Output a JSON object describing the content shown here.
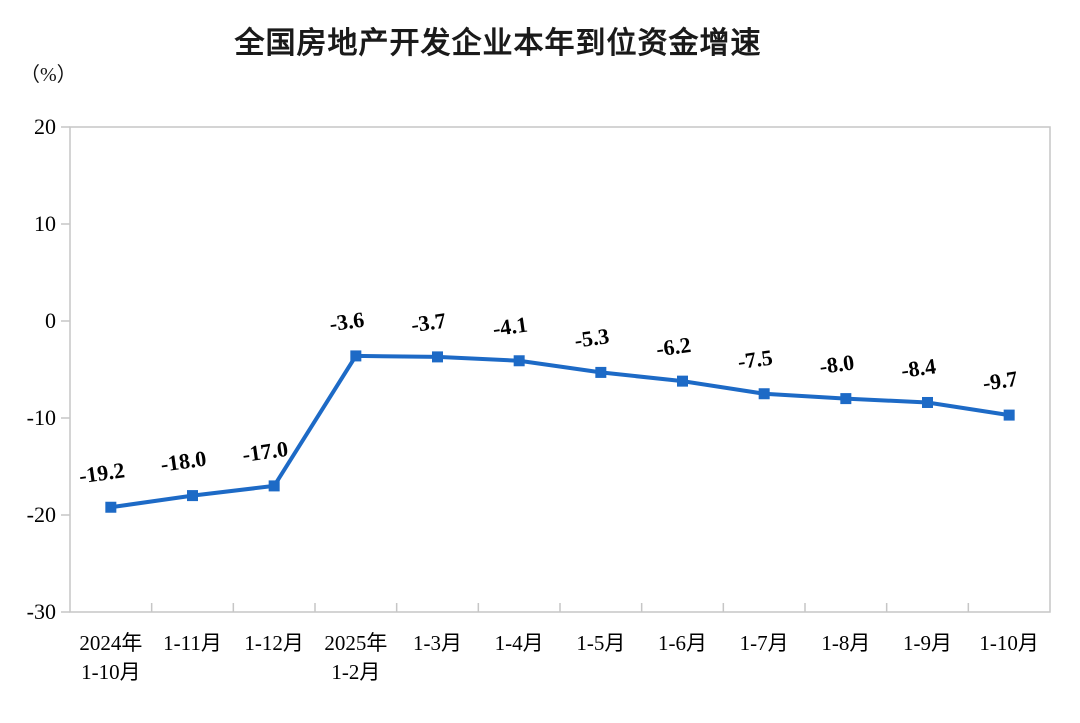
{
  "page": {
    "background_color": "#ffffff"
  },
  "chart_data": {
    "type": "line",
    "title": "全国房地产开发企业本年到位资金增速",
    "unit_label": "（%）",
    "xlabel": "",
    "ylabel": "（%）",
    "categories": [
      [
        "2024年",
        "1-10月"
      ],
      [
        "1-11月"
      ],
      [
        "1-12月"
      ],
      [
        "2025年",
        "1-2月"
      ],
      [
        "1-3月"
      ],
      [
        "1-4月"
      ],
      [
        "1-5月"
      ],
      [
        "1-6月"
      ],
      [
        "1-7月"
      ],
      [
        "1-8月"
      ],
      [
        "1-9月"
      ],
      [
        "1-10月"
      ]
    ],
    "values": [
      -19.2,
      -18.0,
      -17.0,
      -3.6,
      -3.7,
      -4.1,
      -5.3,
      -6.2,
      -7.5,
      -8.0,
      -8.4,
      -9.7
    ],
    "data_labels": [
      "-19.2",
      "-18.0",
      "-17.0",
      "-3.6",
      "-3.7",
      "-4.1",
      "-5.3",
      "-6.2",
      "-7.5",
      "-8.0",
      "-8.4",
      "-9.7"
    ],
    "ylim": [
      -30,
      20
    ],
    "yticks": [
      20,
      10,
      0,
      -10,
      -20,
      -30
    ],
    "ytick_interval": 10,
    "grid": false,
    "legend_position": "none",
    "line_color": "#1d6ac6",
    "marker": "square",
    "marker_color": "#1d6ac6",
    "axis_color": "#c6c6c6",
    "text_color": "#000000"
  }
}
